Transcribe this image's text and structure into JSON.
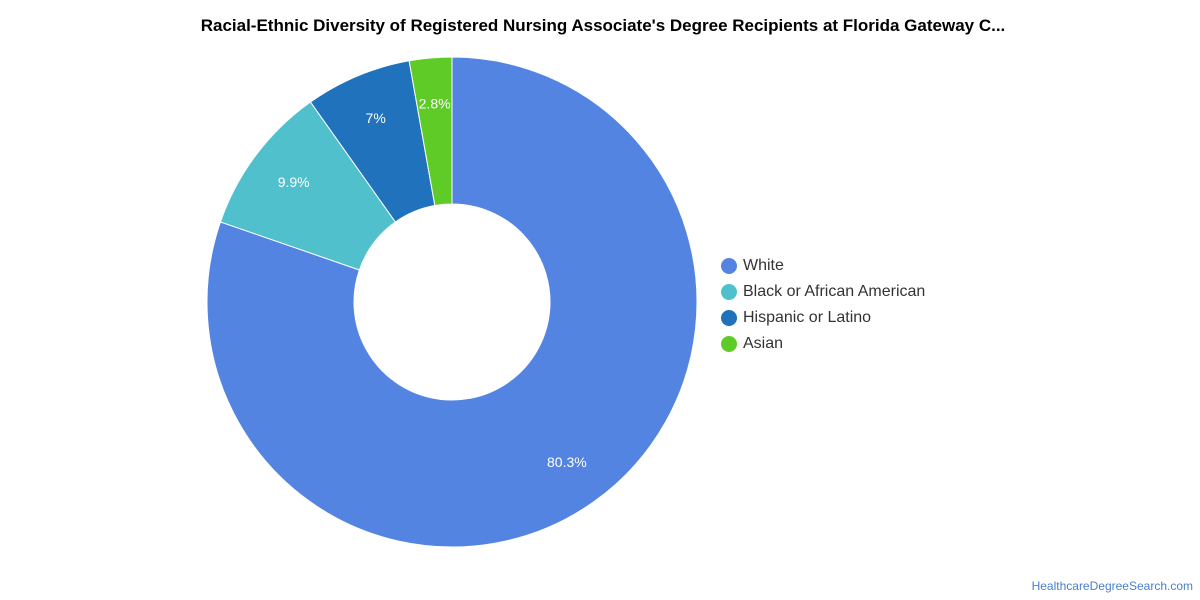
{
  "chart_data": {
    "type": "pie",
    "title": "Racial-Ethnic Diversity of Registered Nursing Associate's Degree Recipients at Florida Gateway C...",
    "slices": [
      {
        "label": "White",
        "value": 80.3,
        "value_label": "80.3%",
        "color": "#5484e2"
      },
      {
        "label": "Black or African American",
        "value": 9.9,
        "value_label": "9.9%",
        "color": "#50c1cc"
      },
      {
        "label": "Hispanic or Latino",
        "value": 7,
        "value_label": "7%",
        "color": "#1f72bb"
      },
      {
        "label": "Asian",
        "value": 2.8,
        "value_label": "2.8%",
        "color": "#5fcb27"
      }
    ],
    "donut": true,
    "legend_position": "right"
  },
  "footer": {
    "source": "HealthcareDegreeSearch.com"
  }
}
